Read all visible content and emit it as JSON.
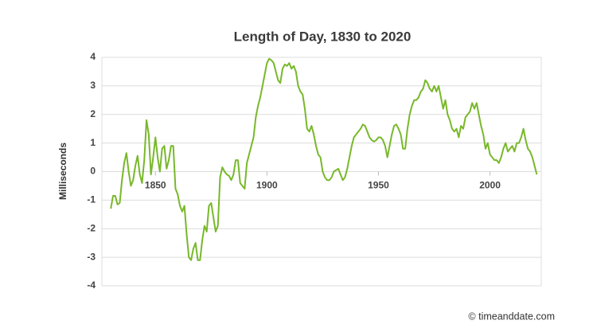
{
  "chart_data": {
    "type": "line",
    "title": "Length of Day, 1830 to 2020",
    "y_label": "Milliseconds",
    "source": "© timeanddate.com",
    "x": [
      1830,
      1831,
      1832,
      1833,
      1834,
      1835,
      1836,
      1837,
      1838,
      1839,
      1840,
      1841,
      1842,
      1843,
      1844,
      1845,
      1846,
      1847,
      1848,
      1849,
      1850,
      1851,
      1852,
      1853,
      1854,
      1855,
      1856,
      1857,
      1858,
      1859,
      1860,
      1861,
      1862,
      1863,
      1864,
      1865,
      1866,
      1867,
      1868,
      1869,
      1870,
      1871,
      1872,
      1873,
      1874,
      1875,
      1876,
      1877,
      1878,
      1879,
      1880,
      1881,
      1882,
      1883,
      1884,
      1885,
      1886,
      1887,
      1888,
      1889,
      1890,
      1891,
      1892,
      1893,
      1894,
      1895,
      1896,
      1897,
      1898,
      1899,
      1900,
      1901,
      1902,
      1903,
      1904,
      1905,
      1906,
      1907,
      1908,
      1909,
      1910,
      1911,
      1912,
      1913,
      1914,
      1915,
      1916,
      1917,
      1918,
      1919,
      1920,
      1921,
      1922,
      1923,
      1924,
      1925,
      1926,
      1927,
      1928,
      1929,
      1930,
      1931,
      1932,
      1933,
      1934,
      1935,
      1936,
      1937,
      1938,
      1939,
      1940,
      1941,
      1942,
      1943,
      1944,
      1945,
      1946,
      1947,
      1948,
      1949,
      1950,
      1951,
      1952,
      1953,
      1954,
      1955,
      1956,
      1957,
      1958,
      1959,
      1960,
      1961,
      1962,
      1963,
      1964,
      1965,
      1966,
      1967,
      1968,
      1969,
      1970,
      1971,
      1972,
      1973,
      1974,
      1975,
      1976,
      1977,
      1978,
      1979,
      1980,
      1981,
      1982,
      1983,
      1984,
      1985,
      1986,
      1987,
      1988,
      1989,
      1990,
      1991,
      1992,
      1993,
      1994,
      1995,
      1996,
      1997,
      1998,
      1999,
      2000,
      2001,
      2002,
      2003,
      2004,
      2005,
      2006,
      2007,
      2008,
      2009,
      2010,
      2011,
      2012,
      2013,
      2014,
      2015,
      2016,
      2017,
      2018,
      2019,
      2020,
      2021
    ],
    "series": [
      {
        "name": "Length of Day",
        "color": "#78b82a",
        "values": [
          -1.3,
          -0.85,
          -0.85,
          -1.15,
          -1.1,
          -0.3,
          0.3,
          0.65,
          0.0,
          -0.5,
          -0.3,
          0.2,
          0.55,
          -0.1,
          -0.4,
          0.4,
          1.8,
          1.3,
          -0.1,
          0.5,
          1.2,
          0.5,
          0.0,
          0.8,
          0.9,
          0.1,
          0.4,
          0.9,
          0.9,
          -0.6,
          -0.8,
          -1.2,
          -1.4,
          -1.2,
          -2.2,
          -3.0,
          -3.1,
          -2.7,
          -2.5,
          -3.1,
          -3.1,
          -2.4,
          -1.9,
          -2.1,
          -1.2,
          -1.1,
          -1.6,
          -2.1,
          -1.9,
          -0.2,
          0.15,
          0.0,
          -0.1,
          -0.15,
          -0.3,
          -0.1,
          0.4,
          0.4,
          -0.4,
          -0.5,
          -0.6,
          0.3,
          0.6,
          0.9,
          1.2,
          1.9,
          2.3,
          2.6,
          3.0,
          3.4,
          3.8,
          3.95,
          3.9,
          3.8,
          3.5,
          3.2,
          3.1,
          3.6,
          3.75,
          3.7,
          3.8,
          3.6,
          3.7,
          3.5,
          3.0,
          2.8,
          2.7,
          2.2,
          1.5,
          1.4,
          1.6,
          1.3,
          0.9,
          0.6,
          0.5,
          0.0,
          -0.2,
          -0.3,
          -0.3,
          -0.2,
          0.0,
          0.05,
          0.1,
          -0.1,
          -0.3,
          -0.2,
          0.1,
          0.5,
          0.9,
          1.2,
          1.3,
          1.4,
          1.5,
          1.65,
          1.6,
          1.4,
          1.2,
          1.1,
          1.05,
          1.1,
          1.2,
          1.2,
          1.1,
          0.9,
          0.5,
          0.9,
          1.3,
          1.6,
          1.65,
          1.5,
          1.3,
          0.8,
          0.8,
          1.5,
          2.0,
          2.3,
          2.5,
          2.5,
          2.6,
          2.8,
          2.9,
          3.2,
          3.1,
          2.9,
          2.8,
          3.0,
          2.8,
          3.0,
          2.6,
          2.2,
          2.5,
          2.0,
          1.8,
          1.5,
          1.4,
          1.5,
          1.2,
          1.6,
          1.5,
          1.9,
          2.0,
          2.1,
          2.4,
          2.2,
          2.4,
          2.0,
          1.6,
          1.3,
          0.8,
          1.0,
          0.6,
          0.5,
          0.4,
          0.4,
          0.3,
          0.5,
          0.8,
          1.0,
          0.7,
          0.8,
          0.9,
          0.7,
          1.0,
          1.0,
          1.2,
          1.5,
          1.1,
          0.8,
          0.7,
          0.5,
          0.2,
          -0.1
        ]
      }
    ],
    "xlim": [
      1826,
      2023
    ],
    "ylim": [
      -4,
      4
    ],
    "xticks": [
      1850,
      1900,
      1950,
      2000
    ],
    "yticks": [
      -4,
      -3,
      -2,
      -1,
      0,
      1,
      2,
      3,
      4
    ],
    "grid": true
  }
}
